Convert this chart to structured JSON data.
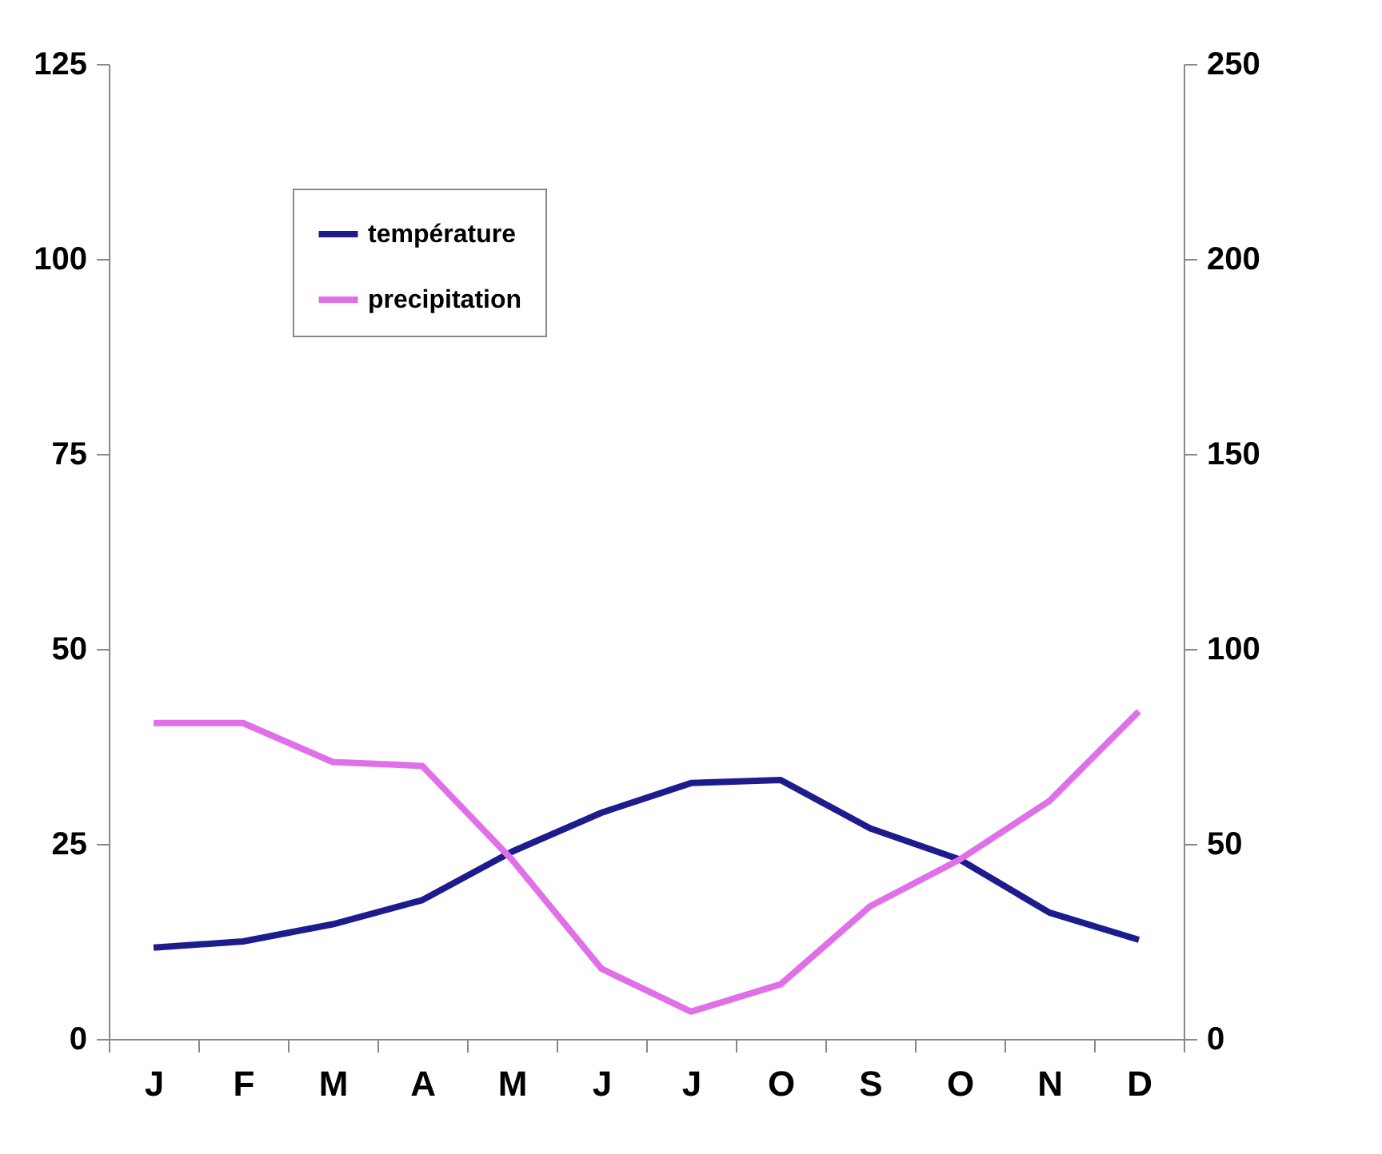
{
  "chart_data": {
    "type": "line",
    "categories": [
      "J",
      "F",
      "M",
      "A",
      "M",
      "J",
      "J",
      "O",
      "S",
      "O",
      "N",
      "D"
    ],
    "series": [
      {
        "name": "température",
        "color": "#1c1c8c",
        "values": [
          11.7,
          12.5,
          14.7,
          17.8,
          24,
          29,
          32.8,
          33.2,
          27,
          23,
          16.2,
          12.7
        ]
      },
      {
        "name": "precipitation",
        "color": "#e070e8",
        "axis": "y2",
        "values": [
          81,
          81,
          71,
          70,
          46,
          18,
          7,
          14,
          34,
          46,
          61,
          84
        ]
      }
    ],
    "ylim": [
      0,
      125
    ],
    "yticks": [
      0,
      25,
      50,
      75,
      100,
      125
    ],
    "y2lim": [
      0,
      250
    ],
    "y2ticks": [
      0,
      50,
      100,
      150,
      200,
      250
    ],
    "grid": false,
    "legend": "top left",
    "marker": "none",
    "line_style": "solid"
  }
}
